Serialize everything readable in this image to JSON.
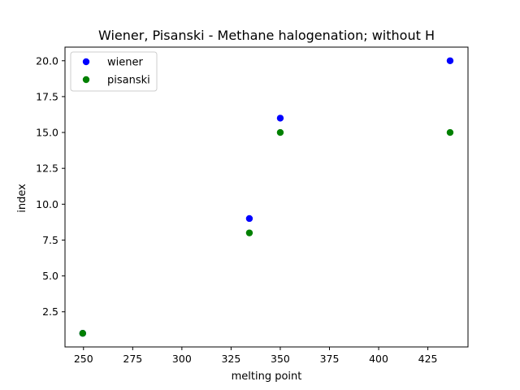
{
  "chart_data": {
    "type": "scatter",
    "title": "Wiener, Pisanski - Methane halogenation; without H",
    "xlabel": "melting point",
    "ylabel": "index",
    "xlim": [
      240.6,
      445.4
    ],
    "ylim": [
      0.05,
      20.95
    ],
    "xticks": [
      250,
      275,
      300,
      325,
      350,
      375,
      400,
      425
    ],
    "yticks": [
      2.5,
      5.0,
      7.5,
      10.0,
      12.5,
      15.0,
      17.5,
      20.0
    ],
    "grid": false,
    "legend_position": "upper-left",
    "series": [
      {
        "name": "wiener",
        "color": "#0000ff",
        "points": [
          [
            249.6,
            1
          ],
          [
            334.3,
            9
          ],
          [
            350.0,
            16
          ],
          [
            436.3,
            20
          ]
        ]
      },
      {
        "name": "pisanski",
        "color": "#008000",
        "points": [
          [
            249.6,
            1
          ],
          [
            334.3,
            8
          ],
          [
            350.0,
            15
          ],
          [
            436.3,
            15
          ]
        ]
      }
    ]
  }
}
